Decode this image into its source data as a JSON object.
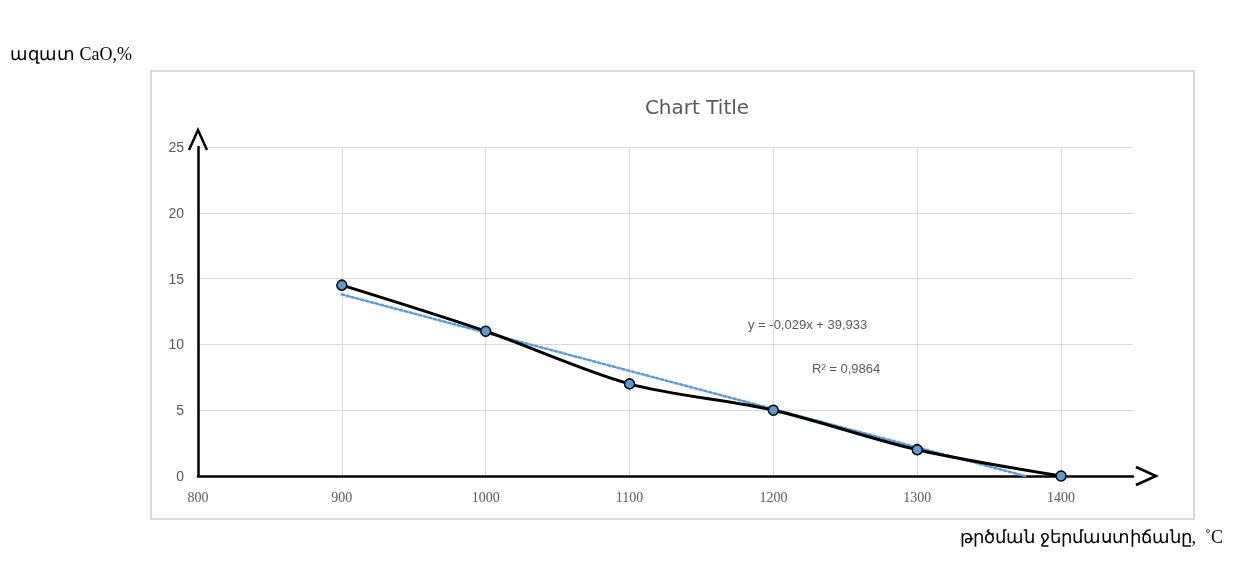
{
  "chart_data": {
    "type": "line",
    "title": "Chart Title",
    "xlabel": "թրծման ջերմաստիճանը,  ˚C",
    "ylabel": "ազատ CaO,%",
    "x": [
      900,
      1000,
      1100,
      1200,
      1300,
      1400
    ],
    "series": [
      {
        "type": "line",
        "color": "#000000",
        "marker": "circle",
        "colors": [
          "#5b9bd5",
          "#5b9bd5",
          "#5b9bd5",
          "#5b9bd5",
          "#5b9bd5",
          "#5b9bd5"
        ],
        "values": [
          14.5,
          11,
          7,
          5,
          2,
          0
        ]
      },
      {
        "type": "line",
        "color": "#5b9bd5",
        "marker": "none",
        "line_style": "dotted",
        "x": [
          900,
          1375
        ],
        "values": [
          13.8,
          0
        ]
      }
    ],
    "xlim": [
      800,
      1450
    ],
    "xticks": [
      800,
      900,
      1000,
      1100,
      1200,
      1300,
      1400
    ],
    "ylim": [
      0,
      25
    ],
    "yticks": [
      0,
      5,
      10,
      15,
      20,
      25
    ],
    "grid": true,
    "annotations": [
      "y = -0,029x + 39,933",
      "R² = 0,9864"
    ]
  }
}
